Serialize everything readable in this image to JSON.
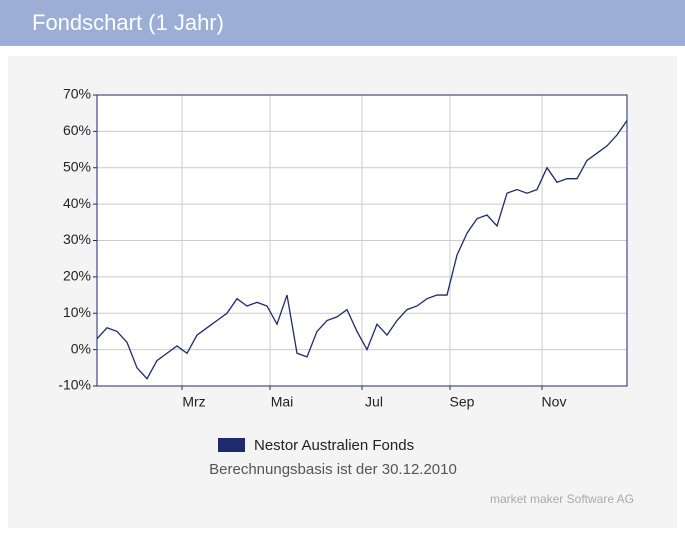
{
  "header": {
    "title": "Fondschart (1 Jahr)"
  },
  "chart_data": {
    "type": "line",
    "series": [
      {
        "name": "Nestor Australien Fonds",
        "color": "#1f2a6b",
        "values": [
          3,
          6,
          5,
          2,
          -5,
          -8,
          -3,
          -1,
          1,
          -1,
          4,
          6,
          8,
          10,
          14,
          12,
          13,
          12,
          7,
          15,
          -1,
          -2,
          5,
          8,
          9,
          11,
          5,
          0,
          7,
          4,
          8,
          11,
          12,
          14,
          15,
          15,
          26,
          32,
          36,
          37,
          34,
          43,
          44,
          43,
          44,
          50,
          46,
          47,
          47,
          52,
          54,
          56,
          59,
          63
        ]
      }
    ],
    "xlim": [
      0,
      53
    ],
    "xticks": [
      {
        "value": 8.5,
        "label": "Mrz"
      },
      {
        "value": 17.3,
        "label": "Mai"
      },
      {
        "value": 26.5,
        "label": "Jul"
      },
      {
        "value": 35.3,
        "label": "Sep"
      },
      {
        "value": 44.5,
        "label": "Nov"
      }
    ],
    "ylim": [
      -10,
      70
    ],
    "yticks": [
      {
        "value": -10,
        "label": "-10%"
      },
      {
        "value": 0,
        "label": "0%"
      },
      {
        "value": 10,
        "label": "10%"
      },
      {
        "value": 20,
        "label": "20%"
      },
      {
        "value": 30,
        "label": "30%"
      },
      {
        "value": 40,
        "label": "40%"
      },
      {
        "value": 50,
        "label": "50%"
      },
      {
        "value": 60,
        "label": "60%"
      },
      {
        "value": 70,
        "label": "70%"
      }
    ],
    "grid": true,
    "annotations": [
      "Berechnungsbasis ist der 30.12.2010",
      "market maker Software AG"
    ]
  }
}
